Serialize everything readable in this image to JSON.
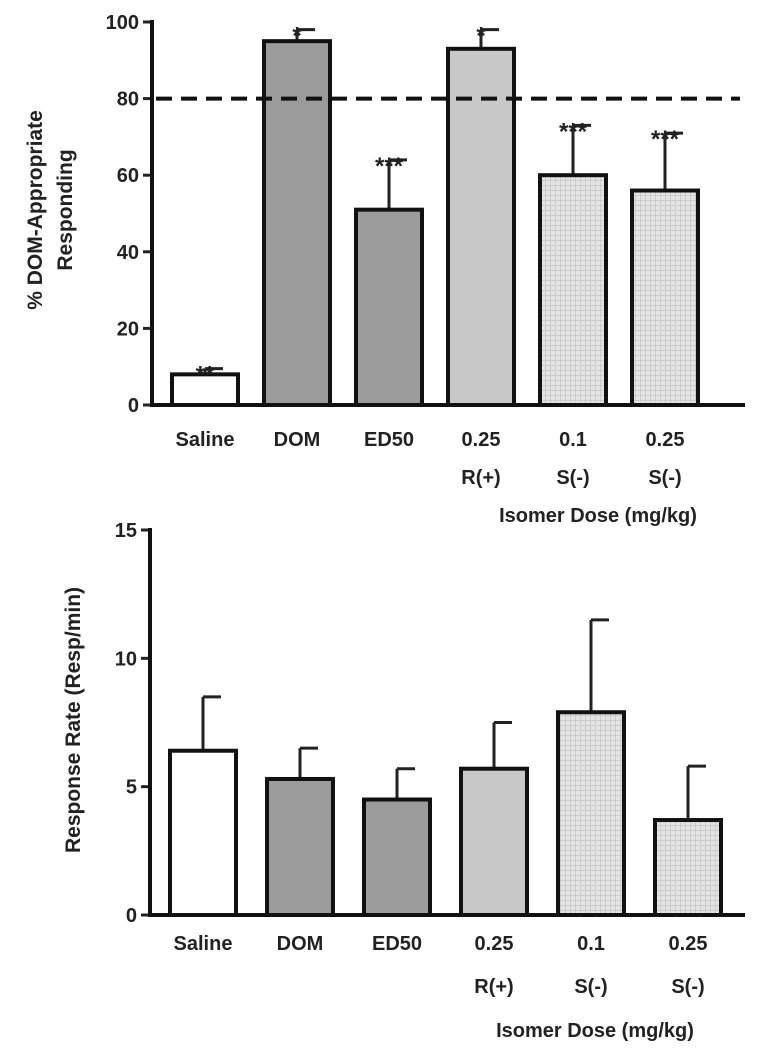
{
  "chart_data": [
    {
      "type": "bar",
      "ylabel_lines": [
        "% DOM-Appropriate",
        "Responding"
      ],
      "ylim": [
        0,
        100
      ],
      "yticks": [
        0,
        20,
        40,
        60,
        80,
        100
      ],
      "categories": [
        "Saline",
        "DOM",
        "ED50",
        "0.25",
        "0.1",
        "0.25"
      ],
      "subcategories": [
        "",
        "",
        "",
        "R(+)",
        "S(-)",
        "S(-)"
      ],
      "xlabel": "Isomer Dose (mg/kg)",
      "values": [
        8,
        95,
        51,
        93,
        60,
        56
      ],
      "errors": [
        1.5,
        3,
        13,
        5,
        13,
        15
      ],
      "significance": [
        "**",
        "*",
        "***",
        "*",
        "***",
        "***"
      ],
      "fills": [
        "#ffffff",
        "#9b9b9b",
        "#9b9b9b",
        "#c8c8c8",
        "#dcdcdc",
        "#dcdcdc"
      ],
      "hatched": [
        false,
        false,
        false,
        false,
        true,
        true
      ],
      "reference_line": 80
    },
    {
      "type": "bar",
      "ylabel": "Response Rate (Resp/min)",
      "ylim": [
        0,
        15
      ],
      "yticks": [
        0,
        5,
        10,
        15
      ],
      "categories": [
        "Saline",
        "DOM",
        "ED50",
        "0.25",
        "0.1",
        "0.25"
      ],
      "subcategories": [
        "",
        "",
        "",
        "R(+)",
        "S(-)",
        "S(-)"
      ],
      "xlabel": "Isomer Dose (mg/kg)",
      "values": [
        6.4,
        5.3,
        4.5,
        5.7,
        7.9,
        3.7
      ],
      "errors": [
        2.1,
        1.2,
        1.2,
        1.8,
        3.6,
        2.1
      ],
      "fills": [
        "#ffffff",
        "#9b9b9b",
        "#9b9b9b",
        "#c8c8c8",
        "#dcdcdc",
        "#dcdcdc"
      ],
      "hatched": [
        false,
        false,
        false,
        false,
        true,
        true
      ]
    }
  ]
}
